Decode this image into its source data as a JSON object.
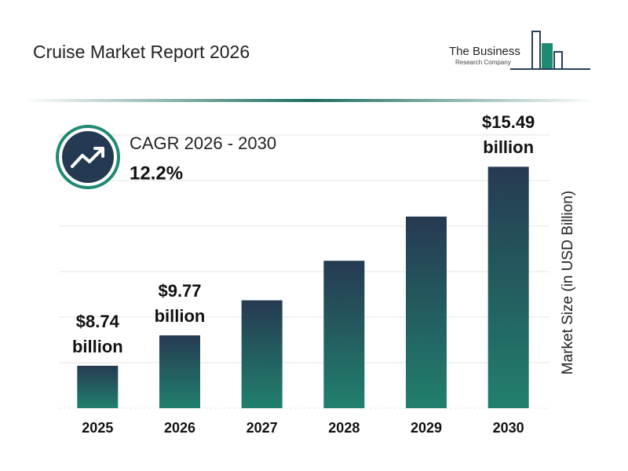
{
  "header": {
    "title": "Cruise Market Report 2026",
    "logo_line1": "The Business",
    "logo_line2": "Research Company"
  },
  "cagr": {
    "label": "CAGR 2026 - 2030",
    "value": "12.2%"
  },
  "chart_data": {
    "type": "bar",
    "categories": [
      "2025",
      "2026",
      "2027",
      "2028",
      "2029",
      "2030"
    ],
    "values": [
      8.74,
      9.77,
      10.96,
      12.3,
      13.8,
      15.49
    ],
    "value_labels": [
      "$8.74 billion",
      "$9.77 billion",
      null,
      null,
      null,
      "$15.49 billion"
    ],
    "ylabel": "Market Size (in USD Billion)",
    "ylim": [
      7.3,
      16.3
    ],
    "color": [
      "#263a52",
      "#21806d"
    ]
  }
}
